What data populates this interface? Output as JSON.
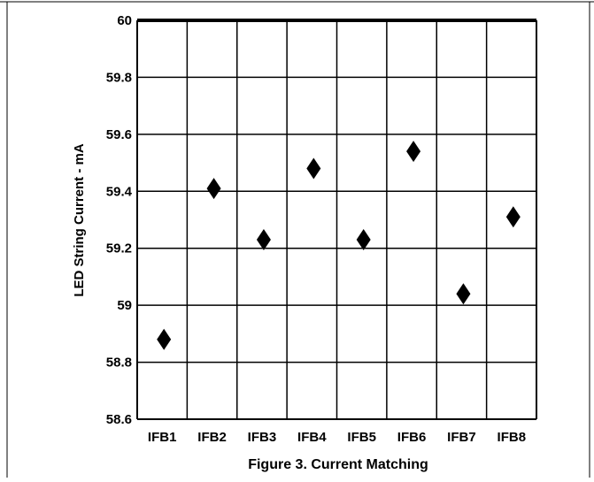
{
  "chart_data": {
    "type": "scatter",
    "title": "",
    "caption": "Figure 3. Current Matching",
    "xlabel": "",
    "ylabel": "LED String Current - mA",
    "categories": [
      "IFB1",
      "IFB2",
      "IFB3",
      "IFB4",
      "IFB5",
      "IFB6",
      "IFB7",
      "IFB8"
    ],
    "values": [
      58.88,
      59.41,
      59.23,
      59.48,
      59.23,
      59.54,
      59.04,
      59.31
    ],
    "ylim": [
      58.6,
      60
    ],
    "yticks": [
      "58.6",
      "58.8",
      "59",
      "59.2",
      "59.4",
      "59.6",
      "59.8",
      "60"
    ],
    "grid": true,
    "marker": "diamond",
    "marker_color": "#000000",
    "legend": "none"
  }
}
